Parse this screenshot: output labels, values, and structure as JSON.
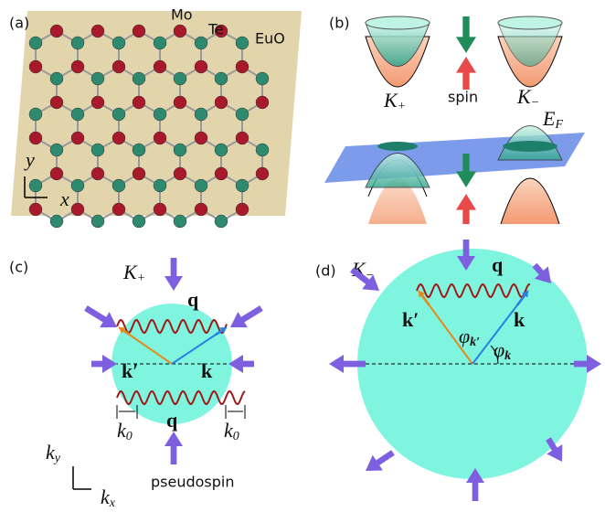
{
  "panel_a": {
    "label": "(a)",
    "atom_mo": "Mo",
    "atom_te": "Te",
    "substrate": "EuO",
    "axis_y": "y",
    "axis_x": "x"
  },
  "panel_b": {
    "label": "(b)",
    "spin": "spin",
    "valley_left": {
      "main": "K",
      "sub": "+"
    },
    "valley_right": {
      "main": "K",
      "sub": "−"
    },
    "fermi": {
      "main": "E",
      "sub": "F"
    }
  },
  "panel_c": {
    "label": "(c)",
    "valley": {
      "main": "K",
      "sub": "+"
    },
    "q_top": "q",
    "q_bottom": "q",
    "k_prime": "k′",
    "k": "k",
    "k0_left": {
      "main": "k",
      "sub": "0"
    },
    "k0_right": {
      "main": "k",
      "sub": "0"
    },
    "axis_y": {
      "main": "k",
      "sub": "y"
    },
    "axis_x": {
      "main": "k",
      "sub": "x"
    },
    "pseudospin": "pseudospin"
  },
  "panel_d": {
    "label": "(d)",
    "valley": {
      "main": "K",
      "sub": "−"
    },
    "q": "q",
    "k_prime": "k′",
    "k": "k",
    "phi_k_prime": {
      "main": "φ",
      "sub": "k′"
    },
    "phi_k": {
      "main": "φ",
      "sub": "k"
    }
  }
}
